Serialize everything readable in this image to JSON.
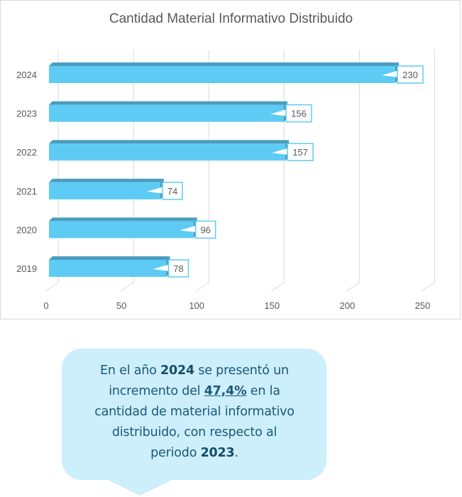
{
  "chart_data": {
    "type": "bar",
    "orientation": "horizontal",
    "style": "3d",
    "title": "Cantidad Material Informativo Distribuido",
    "categories": [
      "2019",
      "2020",
      "2021",
      "2022",
      "2023",
      "2024"
    ],
    "values": [
      78,
      96,
      74,
      157,
      156,
      230
    ],
    "xlim": [
      0,
      250
    ],
    "xticks": [
      0,
      50,
      100,
      150,
      200,
      250
    ],
    "grid": true,
    "data_labels": true,
    "colors": {
      "bar": "#5ecbf5",
      "bar_top": "#4a9cbf",
      "label_border": "#5ecbf5",
      "grid": "#d9d9d9",
      "text": "#595959"
    }
  },
  "callout": {
    "l1a": "En el año ",
    "l1b": "2024",
    "l1c": " se presentó un",
    "l2a": "incremento del ",
    "l2b": "47,4%",
    "l2c": " en la",
    "l3": "cantidad de material informativo",
    "l4": "distribuido, con respecto al",
    "l5a": "periodo ",
    "l5b": "2023",
    "l5c": ".",
    "color": "#cdeefb"
  }
}
